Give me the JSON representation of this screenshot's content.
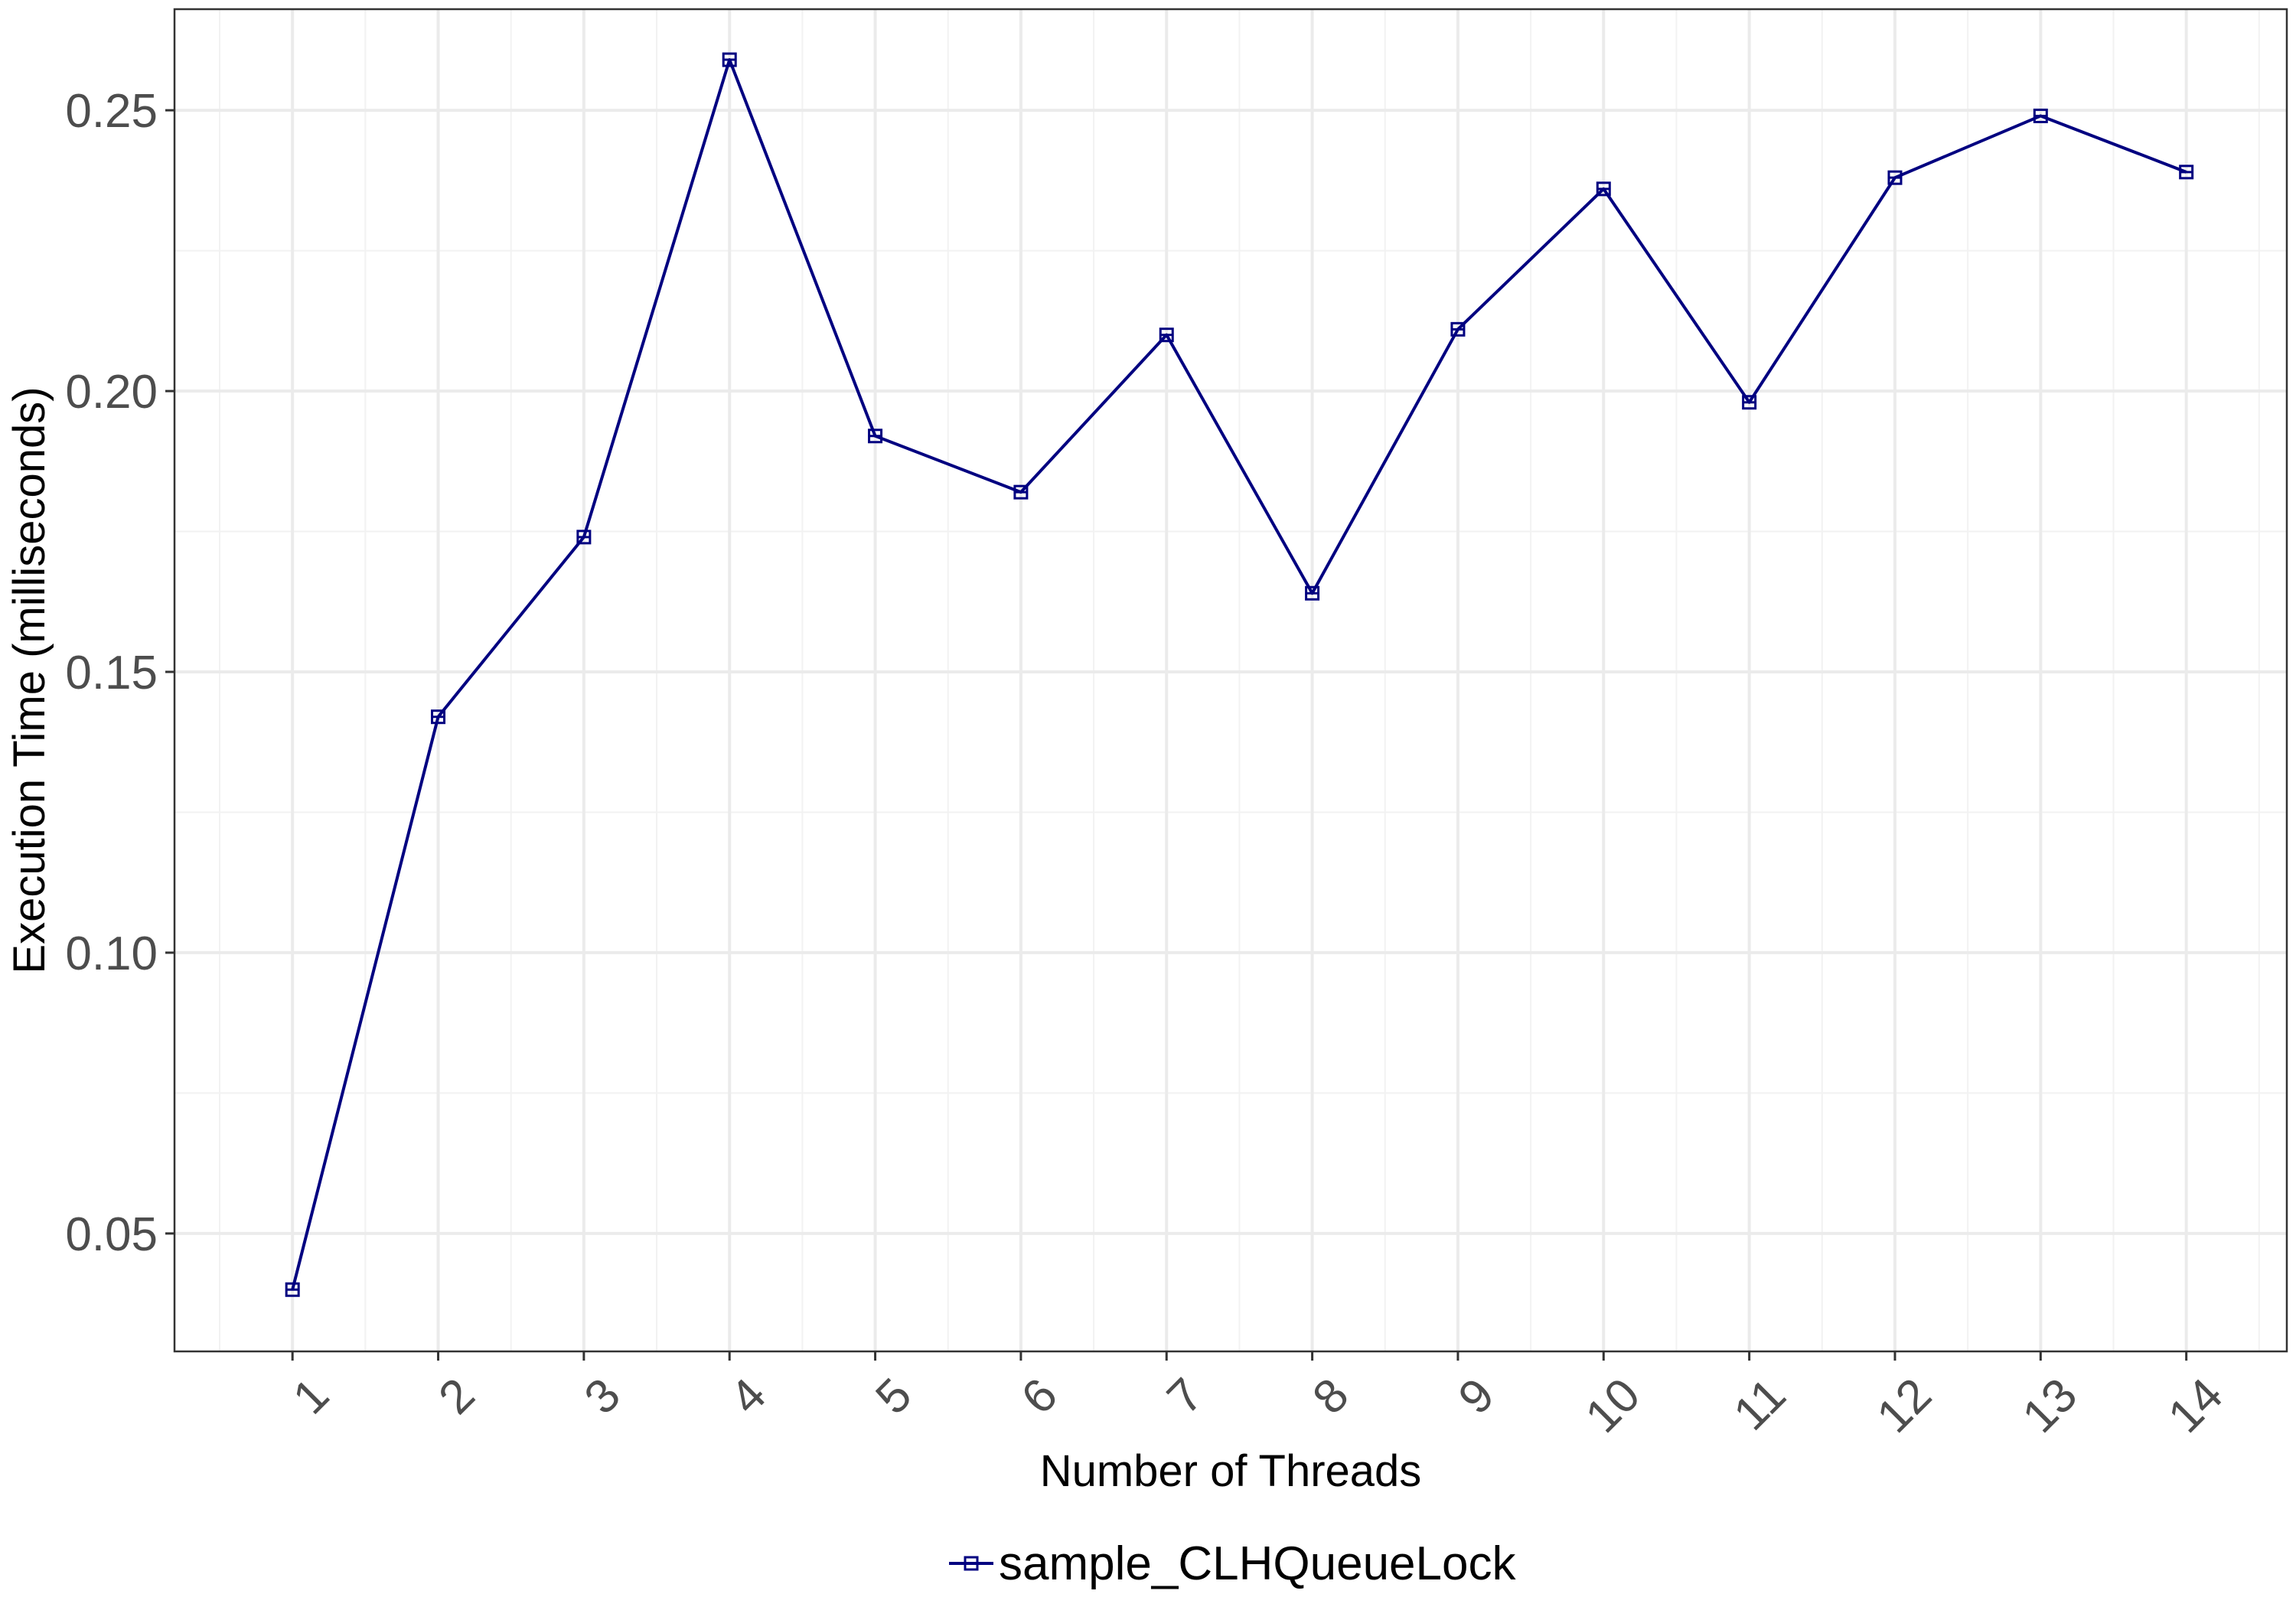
{
  "chart_data": {
    "type": "line",
    "title": "",
    "xlabel": "Number of Threads",
    "ylabel": "Execution Time (milliseconds)",
    "x": [
      1,
      2,
      3,
      4,
      5,
      6,
      7,
      8,
      9,
      10,
      11,
      12,
      13,
      14
    ],
    "x_tick_labels": [
      "1",
      "2",
      "3",
      "4",
      "5",
      "6",
      "7",
      "8",
      "9",
      "10",
      "11",
      "12",
      "13",
      "14"
    ],
    "xlim": [
      0.19,
      14.69
    ],
    "ylim": [
      0.029,
      0.268
    ],
    "y_ticks": [
      0.05,
      0.1,
      0.15,
      0.2,
      0.25
    ],
    "y_tick_labels": [
      "0.05",
      "0.10",
      "0.15",
      "0.20",
      "0.25"
    ],
    "grid": true,
    "legend_position": "bottom",
    "series": [
      {
        "name": "sample_CLHQueueLock",
        "color": "#000080",
        "marker": "square",
        "values": [
          0.04,
          0.142,
          0.174,
          0.259,
          0.192,
          0.182,
          0.21,
          0.164,
          0.211,
          0.236,
          0.198,
          0.238,
          0.249,
          0.239
        ]
      }
    ]
  }
}
